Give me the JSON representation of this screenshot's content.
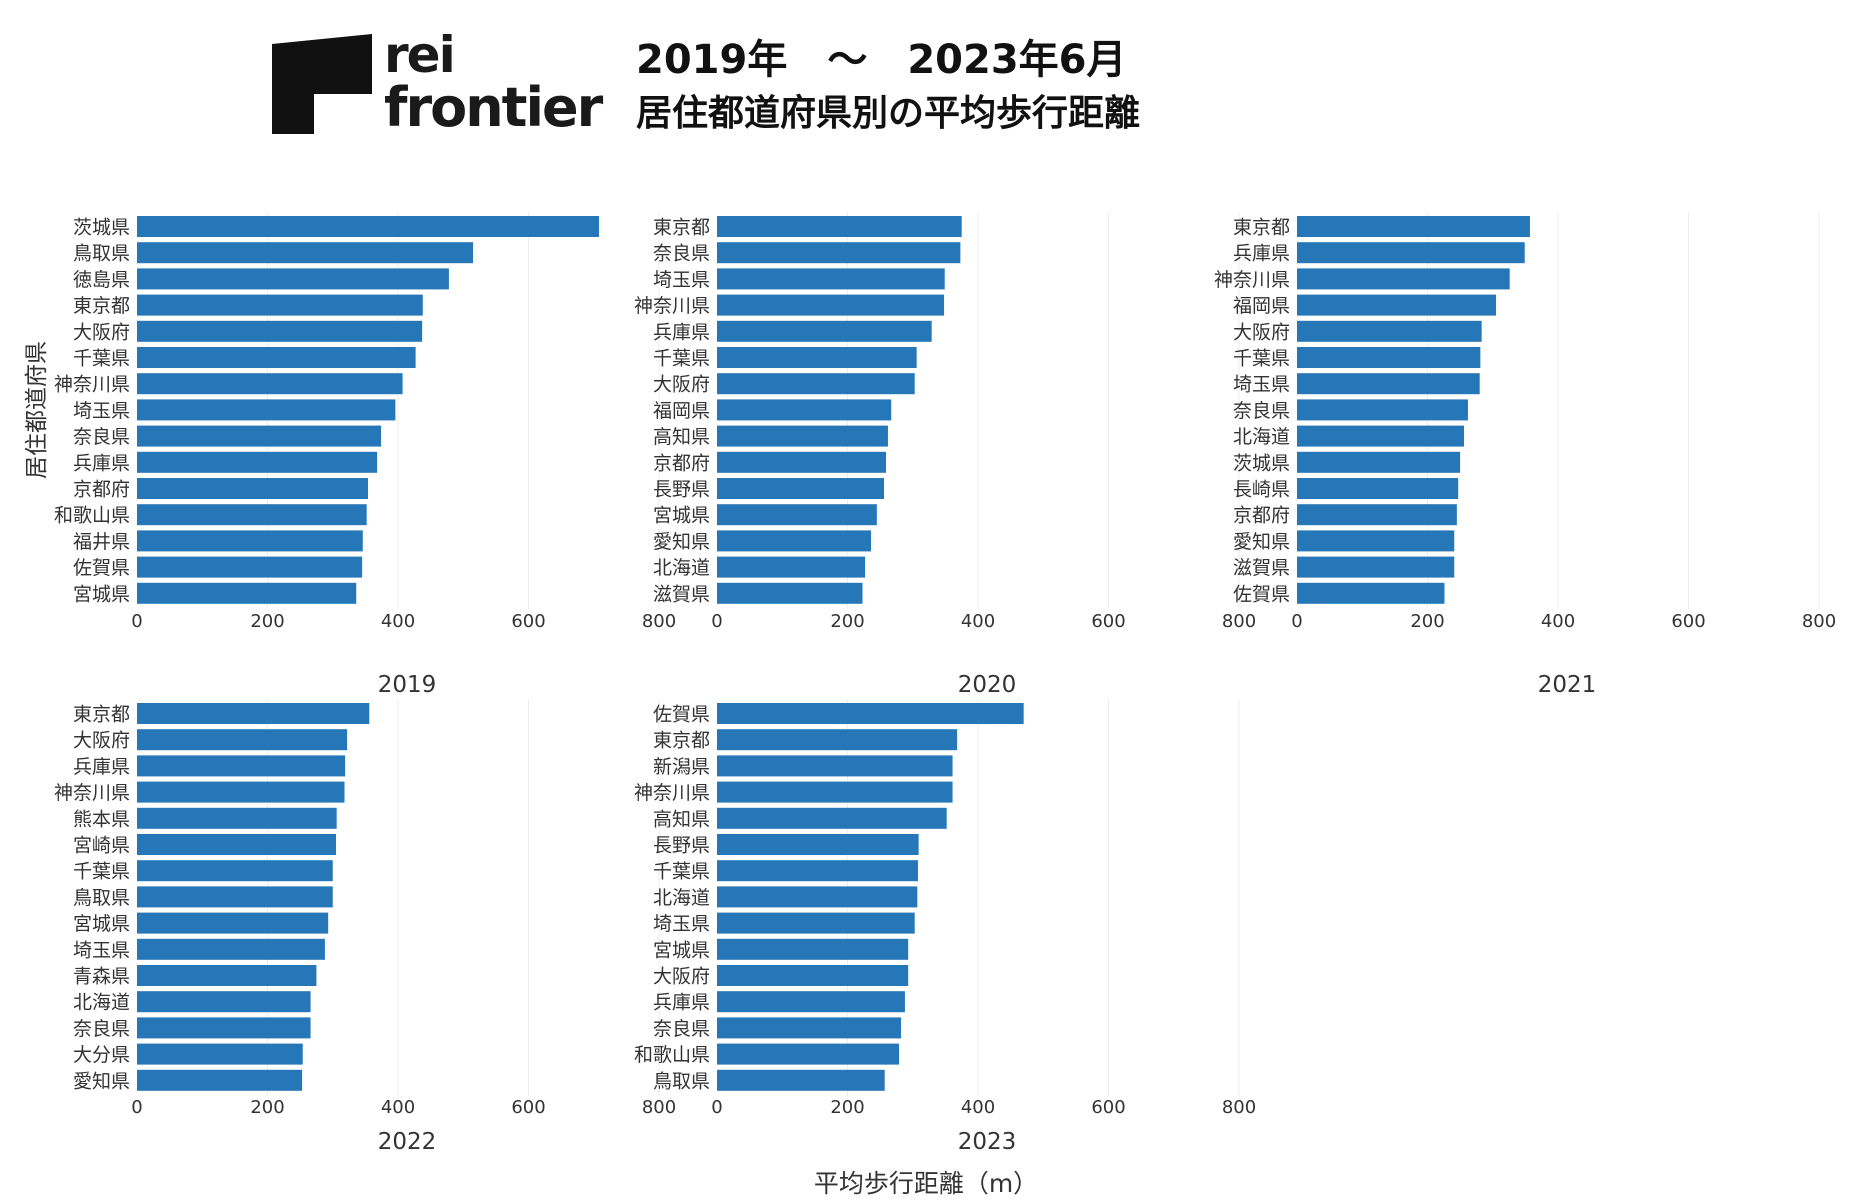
{
  "logo": {
    "text_line1": "rei",
    "text_line2": "frontier"
  },
  "header": {
    "title": "2019年　～　2023年6月",
    "subtitle": "居住都道府県別の平均歩行距離"
  },
  "colors": {
    "bar": "#2677b8",
    "grid": "#eeeeee",
    "text": "#333333"
  },
  "chart_data": {
    "type": "bar",
    "orientation": "horizontal",
    "ylabel": "居住都道府県",
    "xlabel": "平均歩行距離（m）",
    "xlim": [
      0,
      800
    ],
    "ticks": [
      0,
      200,
      400,
      600,
      800
    ],
    "grid": true,
    "panels": [
      {
        "name": "2019",
        "categories": [
          "茨城県",
          "鳥取県",
          "徳島県",
          "東京都",
          "大阪府",
          "千葉県",
          "神奈川県",
          "埼玉県",
          "奈良県",
          "兵庫県",
          "京都府",
          "和歌山県",
          "福井県",
          "佐賀県",
          "宮城県"
        ],
        "values": [
          708,
          515,
          478,
          438,
          437,
          427,
          407,
          396,
          374,
          368,
          354,
          352,
          346,
          345,
          336
        ]
      },
      {
        "name": "2020",
        "categories": [
          "東京都",
          "奈良県",
          "埼玉県",
          "神奈川県",
          "兵庫県",
          "千葉県",
          "大阪府",
          "福岡県",
          "高知県",
          "京都府",
          "長野県",
          "宮城県",
          "愛知県",
          "北海道",
          "滋賀県"
        ],
        "values": [
          375,
          373,
          349,
          348,
          329,
          306,
          303,
          267,
          262,
          259,
          256,
          245,
          236,
          227,
          223
        ]
      },
      {
        "name": "2021",
        "categories": [
          "東京都",
          "兵庫県",
          "神奈川県",
          "福岡県",
          "大阪府",
          "千葉県",
          "埼玉県",
          "奈良県",
          "北海道",
          "茨城県",
          "長崎県",
          "京都府",
          "愛知県",
          "滋賀県",
          "佐賀県"
        ],
        "values": [
          357,
          349,
          326,
          305,
          283,
          281,
          280,
          262,
          256,
          250,
          247,
          245,
          241,
          241,
          226
        ]
      },
      {
        "name": "2022",
        "categories": [
          "東京都",
          "大阪府",
          "兵庫県",
          "神奈川県",
          "熊本県",
          "宮崎県",
          "千葉県",
          "鳥取県",
          "宮城県",
          "埼玉県",
          "青森県",
          "北海道",
          "奈良県",
          "大分県",
          "愛知県"
        ],
        "values": [
          356,
          322,
          319,
          318,
          306,
          305,
          300,
          300,
          293,
          288,
          275,
          266,
          266,
          254,
          253
        ]
      },
      {
        "name": "2023",
        "categories": [
          "佐賀県",
          "東京都",
          "新潟県",
          "神奈川県",
          "高知県",
          "長野県",
          "千葉県",
          "北海道",
          "埼玉県",
          "宮城県",
          "大阪府",
          "兵庫県",
          "奈良県",
          "和歌山県",
          "鳥取県"
        ],
        "values": [
          470,
          368,
          361,
          361,
          352,
          309,
          308,
          307,
          303,
          293,
          293,
          288,
          282,
          279,
          257
        ]
      }
    ]
  }
}
